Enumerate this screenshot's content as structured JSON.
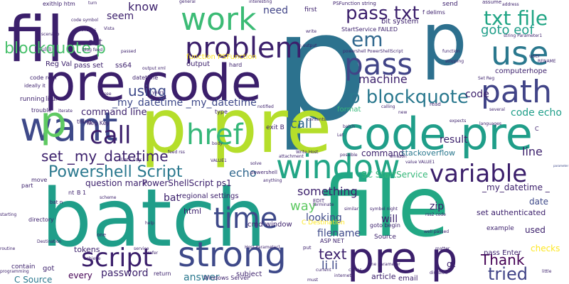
{
  "palette": [
    "#440154",
    "#46327e",
    "#365c8d",
    "#277f8e",
    "#1fa187",
    "#4ac16d",
    "#a0da39",
    "#fde725"
  ],
  "words": [
    {
      "text": "p",
      "color": "#2c728e"
    },
    {
      "text": "file",
      "color": "#3b1f6b"
    },
    {
      "text": "batch",
      "color": "#1f9e89"
    },
    {
      "text": "file",
      "color": "#22a884"
    },
    {
      "text": "pre code",
      "color": "#3b1f6b"
    },
    {
      "text": "p pre",
      "color": "#b5de2b"
    },
    {
      "text": "code pre",
      "color": "#1f9e89"
    },
    {
      "text": "p",
      "color": "#2d708e"
    },
    {
      "text": "pre p",
      "color": "#3b1f6b"
    },
    {
      "text": "strong",
      "color": "#3e4989"
    },
    {
      "text": "window",
      "color": "#21a585"
    },
    {
      "text": "path",
      "color": "#414487"
    },
    {
      "text": "use",
      "color": "#2a788e"
    },
    {
      "text": "work",
      "color": "#3bbb75"
    },
    {
      "text": "problem",
      "color": "#3b1f6b"
    },
    {
      "text": "pass",
      "color": "#414487"
    },
    {
      "text": "em",
      "color": "#31688e"
    },
    {
      "text": "want",
      "color": "#3e4989"
    },
    {
      "text": "variable",
      "color": "#3b1f6b"
    },
    {
      "text": "script",
      "color": "#3b1f6b"
    },
    {
      "text": "call",
      "color": "#3b1f6b"
    },
    {
      "text": "p",
      "color": "#5ec962"
    },
    {
      "text": "p blockquote",
      "color": "#2a788e"
    },
    {
      "text": "pass txt",
      "color": "#3b1f6b"
    },
    {
      "text": "txt file",
      "color": "#21a585"
    },
    {
      "text": "href",
      "color": "#35b779"
    },
    {
      "text": "time",
      "color": "#3e4989"
    },
    {
      "text": "blockquote p",
      "color": "#4ac16d"
    },
    {
      "text": "Powershell Script",
      "color": "#2a788e"
    },
    {
      "text": "set _my_datetime",
      "color": "#3b1f6b"
    },
    {
      "text": "tried",
      "color": "#414487"
    },
    {
      "text": "Thank",
      "color": "#440154"
    },
    {
      "text": "text",
      "color": "#3b1f6b"
    },
    {
      "text": "li li",
      "color": "#3e4989"
    },
    {
      "text": "echo",
      "color": "#31688e"
    },
    {
      "text": "something",
      "color": "#3b1f6b"
    },
    {
      "text": "call",
      "color": "#31688e"
    },
    {
      "text": "using",
      "color": "#3e4989"
    },
    {
      "text": "know",
      "color": "#3b1f6b"
    },
    {
      "text": "need",
      "color": "#414487"
    },
    {
      "text": "seem",
      "color": "#3b1f6b"
    },
    {
      "text": "machine",
      "color": "#3b1f6b"
    },
    {
      "text": "goto eof",
      "color": "#1f9e89"
    },
    {
      "text": "parameter",
      "color": "#3e4989"
    },
    {
      "text": "code echo",
      "color": "#1f9e89"
    },
    {
      "text": "line",
      "color": "#3b1f6b"
    },
    {
      "text": "command line",
      "color": "#3b1f6b"
    },
    {
      "text": "_my_datetime _my_datetime",
      "color": "#3e4989"
    },
    {
      "text": "password",
      "color": "#3b1f6b"
    },
    {
      "text": "answer",
      "color": "#2a788e"
    },
    {
      "text": "way",
      "color": "#5ec962"
    },
    {
      "text": "every",
      "color": "#440154"
    },
    {
      "text": "question mark",
      "color": "#3b1f6b"
    },
    {
      "text": "PowerShellScript ps1",
      "color": "#3b1f6b"
    },
    {
      "text": "bat",
      "color": "#3b1f6b"
    },
    {
      "text": "SC StartService",
      "color": "#35b779"
    },
    {
      "text": "zip",
      "color": "#3b1f6b"
    },
    {
      "text": "filename",
      "color": "#3e4989"
    },
    {
      "text": "will",
      "color": "#3b1f6b"
    },
    {
      "text": "looking",
      "color": "#3e4989"
    },
    {
      "text": "result",
      "color": "#3b1f6b"
    },
    {
      "text": "date",
      "color": "#3e4989"
    },
    {
      "text": "code",
      "color": "#3b1f6b"
    },
    {
      "text": "used",
      "color": "#3b1f6b"
    },
    {
      "text": "checks",
      "color": "#fde725"
    },
    {
      "text": "gt",
      "color": "#3b1f6b"
    },
    {
      "text": "command",
      "color": "#3b1f6b"
    },
    {
      "text": "stackoverflow",
      "color": "#2a788e"
    },
    {
      "text": "_my_datetime _",
      "color": "#3b1f6b"
    },
    {
      "text": "set authenticated",
      "color": "#3b1f6b"
    },
    {
      "text": "pass Enter",
      "color": "#3b1f6b"
    },
    {
      "text": "article",
      "color": "#3b1f6b"
    },
    {
      "text": "html",
      "color": "#3b1f6b"
    },
    {
      "text": "regional settings",
      "color": "#3b1f6b"
    },
    {
      "text": "cmd window",
      "color": "#3b1f6b"
    },
    {
      "text": "C Source",
      "color": "#2a788e"
    },
    {
      "text": "got",
      "color": "#3b1f6b"
    },
    {
      "text": "contain",
      "color": "#3b1f6b"
    },
    {
      "text": "subject",
      "color": "#3b1f6b"
    },
    {
      "text": "Windows Server",
      "color": "#3b1f6b"
    },
    {
      "text": "return",
      "color": "#3b1f6b"
    },
    {
      "text": "email",
      "color": "#3b1f6b"
    },
    {
      "text": "tokens",
      "color": "#3b1f6b"
    },
    {
      "text": "set",
      "color": "#3b1f6b"
    },
    {
      "text": "Reg Val",
      "color": "#3b1f6b"
    },
    {
      "text": "pass set",
      "color": "#3b1f6b"
    },
    {
      "text": "ss64",
      "color": "#3b1f6b"
    },
    {
      "text": "output",
      "color": "#3b1f6b"
    },
    {
      "text": "hard",
      "color": "#3b1f6b"
    },
    {
      "text": "function PSFunction",
      "color": "#fde725"
    },
    {
      "text": "StartService FAILED",
      "color": "#3b1f6b"
    },
    {
      "text": "bit system",
      "color": "#3b1f6b"
    },
    {
      "text": "first",
      "color": "#3b1f6b"
    },
    {
      "text": "send",
      "color": "#3b1f6b"
    },
    {
      "text": "computerhope",
      "color": "#3b1f6b"
    },
    {
      "text": "datetime",
      "color": "#3b1f6b"
    },
    {
      "text": "code rem",
      "color": "#3b1f6b"
    },
    {
      "text": "running",
      "color": "#3b1f6b"
    },
    {
      "text": "trouble",
      "color": "#3b1f6b"
    },
    {
      "text": "Reg Key",
      "color": "#3b1f6b"
    },
    {
      "text": "exit B",
      "color": "#3b1f6b"
    },
    {
      "text": "format",
      "color": "#35b779"
    },
    {
      "text": "ASP NET",
      "color": "#3b1f6b"
    },
    {
      "text": "Source",
      "color": "#3b1f6b"
    },
    {
      "text": "C Destination",
      "color": "#fde725"
    },
    {
      "text": "goto begin",
      "color": "#3b1f6b"
    },
    {
      "text": "example",
      "color": "#3b1f6b"
    },
    {
      "text": "exithlp htm",
      "color": "#3b1f6b"
    },
    {
      "text": "PSFunction string",
      "color": "#3b1f6b"
    },
    {
      "text": "f delims",
      "color": "#3b1f6b"
    },
    {
      "text": "powershell PowerShellScript",
      "color": "#3b1f6b"
    },
    {
      "text": "li ul",
      "color": "#3b1f6b"
    },
    {
      "text": "ul li",
      "color": "#3b1f6b"
    },
    {
      "text": "Set Reg",
      "color": "#3b1f6b"
    },
    {
      "text": "directory",
      "color": "#3b1f6b"
    },
    {
      "text": "part",
      "color": "#3b1f6b"
    },
    {
      "text": "move",
      "color": "#3b1f6b"
    },
    {
      "text": "well passed",
      "color": "#3b1f6b"
    },
    {
      "text": "n output",
      "color": "#3b1f6b"
    },
    {
      "text": "string Parameter1",
      "color": "#3b1f6b"
    },
    {
      "text": "assume",
      "color": "#3b1f6b"
    },
    {
      "text": "address",
      "color": "#3b1f6b"
    },
    {
      "text": "RENAME",
      "color": "#3b1f6b"
    },
    {
      "text": "user",
      "color": "#3b1f6b"
    },
    {
      "text": "languages",
      "color": "#3b1f6b"
    },
    {
      "text": "several",
      "color": "#3b1f6b"
    },
    {
      "text": "Host Parameter1",
      "color": "#3b1f6b"
    },
    {
      "text": "put",
      "color": "#3b1f6b"
    },
    {
      "text": "possible",
      "color": "#3b1f6b"
    },
    {
      "text": "one parameter",
      "color": "#3b1f6b"
    },
    {
      "text": "Let",
      "color": "#3b1f6b"
    },
    {
      "text": "blog feed",
      "color": "#3b1f6b"
    },
    {
      "text": "passed",
      "color": "#3b1f6b"
    },
    {
      "text": "Vista",
      "color": "#3b1f6b"
    },
    {
      "text": "dozens",
      "color": "#3b1f6b"
    },
    {
      "text": "scenario",
      "color": "#3b1f6b"
    },
    {
      "text": "code symbol",
      "color": "#3b1f6b"
    },
    {
      "text": "turn",
      "color": "#3b1f6b"
    },
    {
      "text": "general",
      "color": "#3b1f6b"
    },
    {
      "text": "interesting",
      "color": "#3b1f6b"
    },
    {
      "text": "write",
      "color": "#3b1f6b"
    },
    {
      "text": "function",
      "color": "#3b1f6b"
    },
    {
      "text": "stopping",
      "color": "#3b1f6b"
    },
    {
      "text": "calling",
      "color": "#3b1f6b"
    },
    {
      "text": "new",
      "color": "#3b1f6b"
    },
    {
      "text": "read",
      "color": "#3b1f6b"
    },
    {
      "text": "expects",
      "color": "#3b1f6b"
    },
    {
      "text": "amazon",
      "color": "#3b1f6b"
    },
    {
      "text": "value VALUE1",
      "color": "#3b1f6b"
    },
    {
      "text": "rss2 code",
      "color": "#3b1f6b"
    },
    {
      "text": "prefer",
      "color": "#3b1f6b"
    },
    {
      "text": "help",
      "color": "#3b1f6b"
    },
    {
      "text": "routine",
      "color": "#3b1f6b"
    },
    {
      "text": "service",
      "color": "#3b1f6b"
    },
    {
      "text": "achieve",
      "color": "#3b1f6b"
    },
    {
      "text": "programming",
      "color": "#3b1f6b"
    },
    {
      "text": "matter",
      "color": "#3b1f6b"
    },
    {
      "text": "symbol night",
      "color": "#3b1f6b"
    },
    {
      "text": "similar",
      "color": "#3b1f6b"
    },
    {
      "text": "EDIT",
      "color": "#3b1f6b"
    },
    {
      "text": "terminate",
      "color": "#3b1f6b"
    },
    {
      "text": "Write Host",
      "color": "#3b1f6b"
    },
    {
      "text": "attachment",
      "color": "#3b1f6b"
    },
    {
      "text": "anything",
      "color": "#3b1f6b"
    },
    {
      "text": "solve",
      "color": "#3b1f6b"
    },
    {
      "text": "VALUE1",
      "color": "#3b1f6b"
    },
    {
      "text": "Lets say",
      "color": "#3b1f6b"
    },
    {
      "text": "feed rss",
      "color": "#3b1f6b"
    },
    {
      "text": "body",
      "color": "#3b1f6b"
    },
    {
      "text": "type",
      "color": "#3b1f6b"
    },
    {
      "text": "thing",
      "color": "#3b1f6b"
    },
    {
      "text": "iterate",
      "color": "#3b1f6b"
    },
    {
      "text": "see",
      "color": "#3b1f6b"
    },
    {
      "text": "years",
      "color": "#3b1f6b"
    },
    {
      "text": "notified",
      "color": "#3b1f6b"
    },
    {
      "text": "contents",
      "color": "#3b1f6b"
    },
    {
      "text": "ideally it",
      "color": "#3b1f6b"
    },
    {
      "text": "must",
      "color": "#3b1f6b"
    },
    {
      "text": "current",
      "color": "#3b1f6b"
    },
    {
      "text": "internet",
      "color": "#3b1f6b"
    },
    {
      "text": "closes",
      "color": "#3b1f6b"
    },
    {
      "text": "disabled",
      "color": "#3b1f6b"
    },
    {
      "text": "little",
      "color": "#3b1f6b"
    },
    {
      "text": "starting",
      "color": "#3b1f6b"
    },
    {
      "text": "Destination",
      "color": "#3b1f6b"
    },
    {
      "text": "one",
      "color": "#3b1f6b"
    },
    {
      "text": "B 1",
      "color": "#3b1f6b"
    },
    {
      "text": "nt",
      "color": "#3b1f6b"
    },
    {
      "text": "scheme",
      "color": "#3b1f6b"
    },
    {
      "text": "output xml",
      "color": "#3b1f6b"
    },
    {
      "text": "powershell",
      "color": "#3b1f6b"
    },
    {
      "text": "batch",
      "color": "#3b1f6b"
    },
    {
      "text": "bat n",
      "color": "#3b1f6b"
    },
    {
      "text": "C",
      "color": "#3b1f6b"
    }
  ]
}
